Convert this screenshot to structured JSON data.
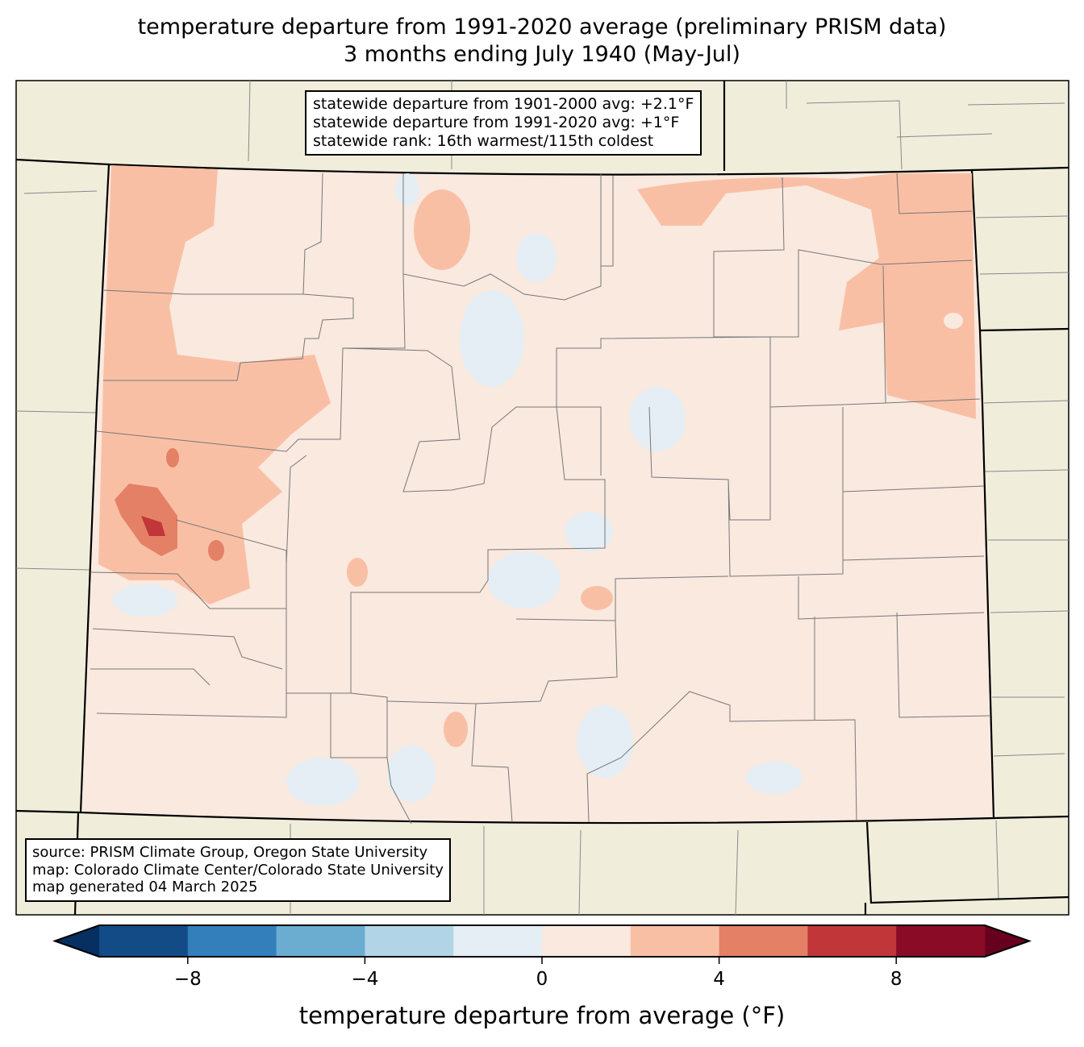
{
  "title": {
    "line1": "temperature departure from 1991-2020 average (preliminary PRISM data)",
    "line2": "3 months ending July 1940 (May-Jul)"
  },
  "stats": {
    "line1": "statewide departure from 1901-2000 avg: +2.1°F",
    "line2": "statewide departure from 1991-2020 avg: +1°F",
    "line3": "statewide rank: 16th warmest/115th coldest"
  },
  "source": {
    "line1": "source: PRISM Climate Group, Oregon State University",
    "line2": "map: Colorado Climate Center/Colorado State University",
    "line3": "map generated 04 March 2025"
  },
  "colorbar": {
    "label": "temperature departure from average (°F)",
    "bounds": [
      -10,
      -8,
      -6,
      -4,
      -2,
      0,
      2,
      4,
      6,
      8,
      10
    ],
    "colors": [
      "#134b87",
      "#327fbb",
      "#6bacd1",
      "#b1d5e7",
      "#e4eef4",
      "#f9e9df",
      "#f9bfa5",
      "#e48066",
      "#c13639",
      "#8a0b25"
    ],
    "under_color": "#053061",
    "over_color": "#67001f",
    "ticks": [
      "−8",
      "−4",
      "0",
      "4",
      "8"
    ]
  },
  "map_colors": {
    "land_outside": "#f0eedb",
    "state_base": "#f9e9df"
  }
}
